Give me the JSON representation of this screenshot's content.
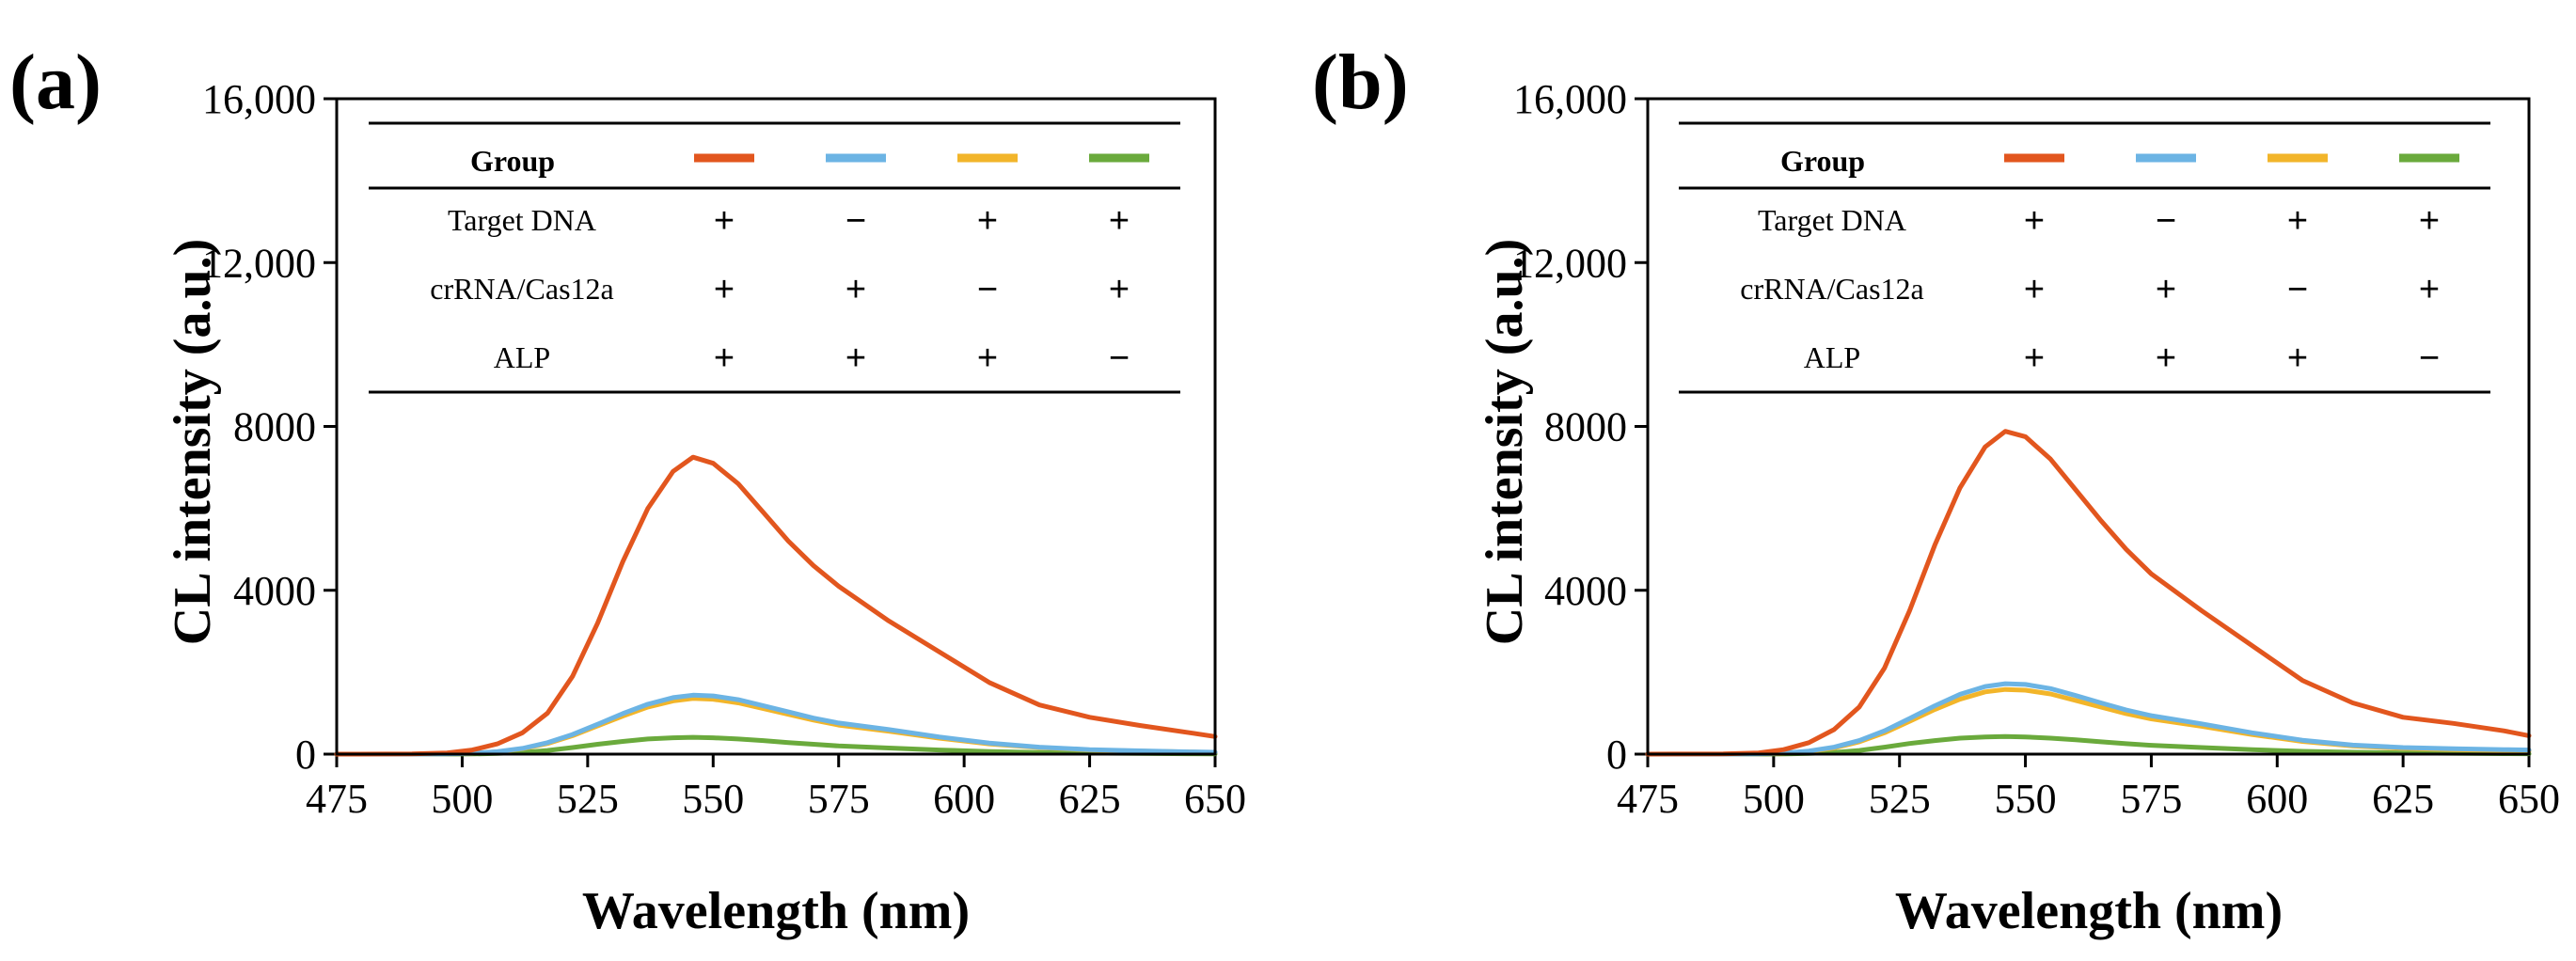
{
  "chart_data": [
    {
      "panel_label": "(a)",
      "type": "line",
      "xlabel": "Wavelength (nm)",
      "ylabel": "CL intensity (a.u.)",
      "xlim": [
        475,
        650
      ],
      "ylim": [
        0,
        16000
      ],
      "xticks": [
        475,
        500,
        525,
        550,
        575,
        600,
        625,
        650
      ],
      "xtick_labels": [
        "475",
        "500",
        "525",
        "550",
        "575",
        "600",
        "625",
        "650"
      ],
      "yticks": [
        0,
        4000,
        8000,
        12000,
        16000
      ],
      "ytick_labels": [
        "0",
        "4000",
        "8000",
        "12,000",
        "16,000"
      ],
      "x": [
        475,
        490,
        497,
        502,
        507,
        512,
        517,
        522,
        527,
        532,
        537,
        542,
        546,
        550,
        555,
        560,
        565,
        570,
        575,
        585,
        595,
        605,
        615,
        625,
        635,
        645,
        650
      ],
      "series": [
        {
          "name": "Group 1",
          "color": "#e2561e",
          "values": [
            0,
            5,
            30,
            100,
            250,
            520,
            1000,
            1900,
            3200,
            4700,
            6000,
            6900,
            7250,
            7100,
            6600,
            5900,
            5200,
            4600,
            4100,
            3250,
            2500,
            1750,
            1200,
            900,
            700,
            520,
            430
          ]
        },
        {
          "name": "Group 2",
          "color": "#6cb4e4",
          "values": [
            0,
            0,
            5,
            20,
            60,
            140,
            280,
            480,
            730,
            990,
            1220,
            1380,
            1440,
            1420,
            1330,
            1180,
            1030,
            880,
            760,
            600,
            420,
            270,
            170,
            110,
            80,
            55,
            45
          ]
        },
        {
          "name": "Group 3",
          "color": "#f2b52a",
          "values": [
            0,
            0,
            5,
            20,
            55,
            130,
            260,
            450,
            690,
            930,
            1150,
            1300,
            1360,
            1340,
            1250,
            1110,
            970,
            830,
            710,
            560,
            390,
            250,
            160,
            100,
            75,
            50,
            40
          ]
        },
        {
          "name": "Group 4",
          "color": "#6aaa3c",
          "values": [
            0,
            0,
            0,
            5,
            15,
            40,
            90,
            160,
            240,
            310,
            370,
            400,
            410,
            400,
            370,
            330,
            280,
            240,
            200,
            150,
            100,
            65,
            40,
            25,
            15,
            10,
            8
          ]
        }
      ],
      "table": {
        "header_label": "Group",
        "rows": [
          {
            "label": "Target DNA",
            "signs": [
              "+",
              "−",
              "+",
              "+"
            ]
          },
          {
            "label": "crRNA/Cas12a",
            "signs": [
              "+",
              "+",
              "−",
              "+"
            ]
          },
          {
            "label": "ALP",
            "signs": [
              "+",
              "+",
              "+",
              "−"
            ]
          }
        ]
      }
    },
    {
      "panel_label": "(b)",
      "type": "line",
      "xlabel": "Wavelength (nm)",
      "ylabel": "CL intensity (a.u.)",
      "xlim": [
        475,
        650
      ],
      "ylim": [
        0,
        16000
      ],
      "xticks": [
        475,
        500,
        525,
        550,
        575,
        600,
        625,
        650
      ],
      "xtick_labels": [
        "475",
        "500",
        "525",
        "550",
        "575",
        "600",
        "625",
        "650"
      ],
      "yticks": [
        0,
        4000,
        8000,
        12000,
        16000
      ],
      "ytick_labels": [
        "0",
        "4000",
        "8000",
        "12,000",
        "16,000"
      ],
      "x": [
        475,
        490,
        497,
        502,
        507,
        512,
        517,
        522,
        527,
        532,
        537,
        542,
        546,
        550,
        555,
        560,
        565,
        570,
        575,
        585,
        595,
        605,
        615,
        625,
        635,
        645,
        650
      ],
      "series": [
        {
          "name": "Group 1",
          "color": "#e2561e",
          "values": [
            0,
            5,
            30,
            110,
            280,
            600,
            1150,
            2100,
            3500,
            5100,
            6500,
            7500,
            7880,
            7750,
            7200,
            6450,
            5700,
            5000,
            4400,
            3500,
            2650,
            1800,
            1250,
            900,
            750,
            570,
            450
          ]
        },
        {
          "name": "Group 2",
          "color": "#6cb4e4",
          "values": [
            0,
            0,
            5,
            25,
            75,
            170,
            330,
            570,
            870,
            1180,
            1460,
            1650,
            1720,
            1700,
            1600,
            1430,
            1250,
            1080,
            940,
            740,
            520,
            340,
            220,
            160,
            130,
            110,
            100
          ]
        },
        {
          "name": "Group 3",
          "color": "#f2b52a",
          "values": [
            0,
            0,
            5,
            20,
            65,
            150,
            300,
            520,
            800,
            1090,
            1340,
            1520,
            1580,
            1560,
            1470,
            1310,
            1150,
            990,
            860,
            680,
            480,
            310,
            200,
            140,
            110,
            90,
            80
          ]
        },
        {
          "name": "Group 4",
          "color": "#6aaa3c",
          "values": [
            0,
            0,
            0,
            5,
            15,
            40,
            90,
            170,
            260,
            330,
            390,
            420,
            430,
            420,
            390,
            350,
            300,
            255,
            215,
            160,
            110,
            70,
            45,
            30,
            20,
            12,
            10
          ]
        }
      ],
      "table": {
        "header_label": "Group",
        "rows": [
          {
            "label": "Target DNA",
            "signs": [
              "+",
              "−",
              "+",
              "+"
            ]
          },
          {
            "label": "crRNA/Cas12a",
            "signs": [
              "+",
              "+",
              "−",
              "+"
            ]
          },
          {
            "label": "ALP",
            "signs": [
              "+",
              "+",
              "+",
              "−"
            ]
          }
        ]
      }
    }
  ]
}
